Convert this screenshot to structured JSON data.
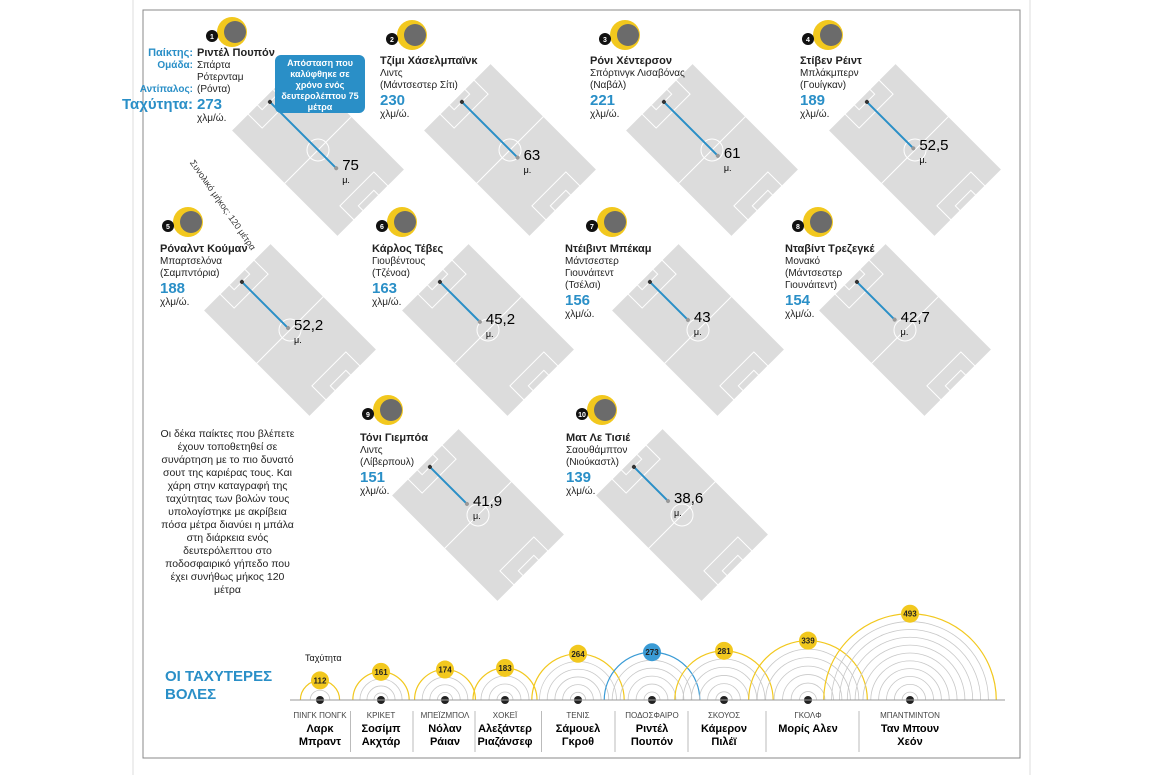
{
  "legend": {
    "player_label": "Παίκτης:",
    "team_label": "Ομάδα:",
    "opponent_label": "Αντίπαλος:",
    "speed_label": "Ταχύτητα:"
  },
  "callout": "Απόσταση που καλύφθηκε σε χρόνο ενός δευτερολέπτου 75 μέτρα",
  "pitch_note": "Συνολικό μήκος: 120 μέτρα",
  "pitch_length_m": 120,
  "speed_unit": "χλμ/ώ.",
  "distance_unit": "μ.",
  "players": [
    {
      "rank": 1,
      "name": "Ριντέλ Πουπόν",
      "team": "Σπάρτα Ρότερνταμ",
      "opponent": "(Ρόντα)",
      "speed": 273,
      "distance": 75,
      "distance_label": "75"
    },
    {
      "rank": 2,
      "name": "Τζίμι Χάσελμπαϊνκ",
      "team": "Λιντς",
      "opponent": "(Μάντσεστερ Σίτι)",
      "speed": 230,
      "distance": 63,
      "distance_label": "63"
    },
    {
      "rank": 3,
      "name": "Ρόνι Χέντερσον",
      "team": "Σπόρτινγκ Λισαβόνας",
      "opponent": "(Ναβάλ)",
      "speed": 221,
      "distance": 61,
      "distance_label": "61"
    },
    {
      "rank": 4,
      "name": "Στίβεν Ρέιντ",
      "team": "Μπλάκμπερν",
      "opponent": "(Γουίγκαν)",
      "speed": 189,
      "distance": 52.5,
      "distance_label": "52,5"
    },
    {
      "rank": 5,
      "name": "Ρόναλντ Κούμαν",
      "team": "Μπαρτσελόνα",
      "opponent": "(Σαμπντόρια)",
      "speed": 188,
      "distance": 52.2,
      "distance_label": "52,2"
    },
    {
      "rank": 6,
      "name": "Κάρλος Τέβες",
      "team": "Γιουβέντους",
      "opponent": "(Τζένοα)",
      "speed": 163,
      "distance": 45.2,
      "distance_label": "45,2"
    },
    {
      "rank": 7,
      "name": "Ντέιβιντ Μπέκαμ",
      "team": "Μάντσεστερ Γιουνάιτεντ",
      "opponent": "(Τσέλσι)",
      "speed": 156,
      "distance": 43,
      "distance_label": "43"
    },
    {
      "rank": 8,
      "name": "Νταβίντ Τρεζεγκέ",
      "team": "Μονακό",
      "opponent": "(Μάντσεστερ Γιουνάιτεντ)",
      "speed": 154,
      "distance": 42.7,
      "distance_label": "42,7"
    },
    {
      "rank": 9,
      "name": "Τόνι Γιεμπόα",
      "team": "Λιντς",
      "opponent": "(Λίβερπουλ)",
      "speed": 151,
      "distance": 41.9,
      "distance_label": "41,9"
    },
    {
      "rank": 10,
      "name": "Ματ Λε Τισιέ",
      "team": "Σαουθάμπτον",
      "opponent": "(Νιούκαστλ)",
      "speed": 139,
      "distance": 38.6,
      "distance_label": "38,6"
    }
  ],
  "intro": "Οι δέκα παίκτες που βλέπετε έχουν τοποθετηθεί σε συνάρτηση με το πιο δυνατό σουτ της καριέρας τους. Και χάρη στην καταγραφή της ταχύτητας των βολών τους υπολογίστηκε με ακρίβεια πόσα μέτρα διανύει η μπάλα στη διάρκεια ενός δευτερόλεπτου στο ποδοσφαιρικό γήπεδο που έχει συνήθως μήκος 120 μέτρα",
  "fastest": {
    "title": "ΟΙ ΤΑΧΥΤΕΡΕΣ ΒΟΛΕΣ",
    "speed_label": "Ταχύτητα",
    "items": [
      {
        "sport": "ΠΙΝΓΚ ΠΟΝΓΚ",
        "athlete": "Λαρκ Μπραντ",
        "speed": 112,
        "color": "#f2c81e"
      },
      {
        "sport": "ΚΡΙΚΕΤ",
        "athlete": "Σοσίμπ Ακχτάρ",
        "speed": 161,
        "color": "#f2c81e"
      },
      {
        "sport": "ΜΠΕΪΖΜΠΟΛ",
        "athlete": "Νόλαν Ράιαν",
        "speed": 174,
        "color": "#f2c81e"
      },
      {
        "sport": "ΧΟΚΕΪ",
        "athlete": "Αλεξάντερ Ριαζάνσεφ",
        "speed": 183,
        "color": "#f2c81e"
      },
      {
        "sport": "ΤΕΝΙΣ",
        "athlete": "Σάμουελ Γκροθ",
        "speed": 264,
        "color": "#f2c81e"
      },
      {
        "sport": "ΠΟΔΟΣΦΑΙΡΟ",
        "athlete": "Ριντέλ Πουπόν",
        "speed": 273,
        "color": "#3a9bd5"
      },
      {
        "sport": "ΣΚΟΥΟΣ",
        "athlete": "Κάμερον Πιλέϊ",
        "speed": 281,
        "color": "#f2c81e"
      },
      {
        "sport": "ΓΚΟΛΦ",
        "athlete": "Μορίς Αλεν",
        "speed": 339,
        "color": "#f2c81e"
      },
      {
        "sport": "ΜΠΑΝΤΜΙΝΤΟΝ",
        "athlete": "Ταν Μπουν Χεόν",
        "speed": 493,
        "color": "#f2c81e"
      }
    ]
  }
}
